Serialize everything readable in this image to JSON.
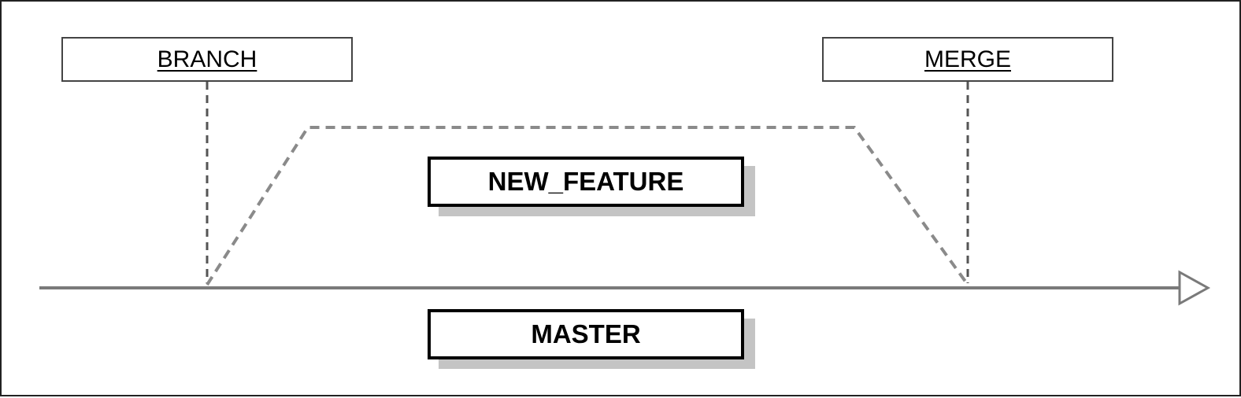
{
  "labels": {
    "branch": "BRANCH",
    "merge": "MERGE"
  },
  "branches": {
    "feature": "NEW_FEATURE",
    "master": "MASTER"
  },
  "colors": {
    "line": "#7a7a7a",
    "dashed": "#7a7a7a",
    "box_border": "#000000",
    "shadow": "#c4c4c4"
  }
}
